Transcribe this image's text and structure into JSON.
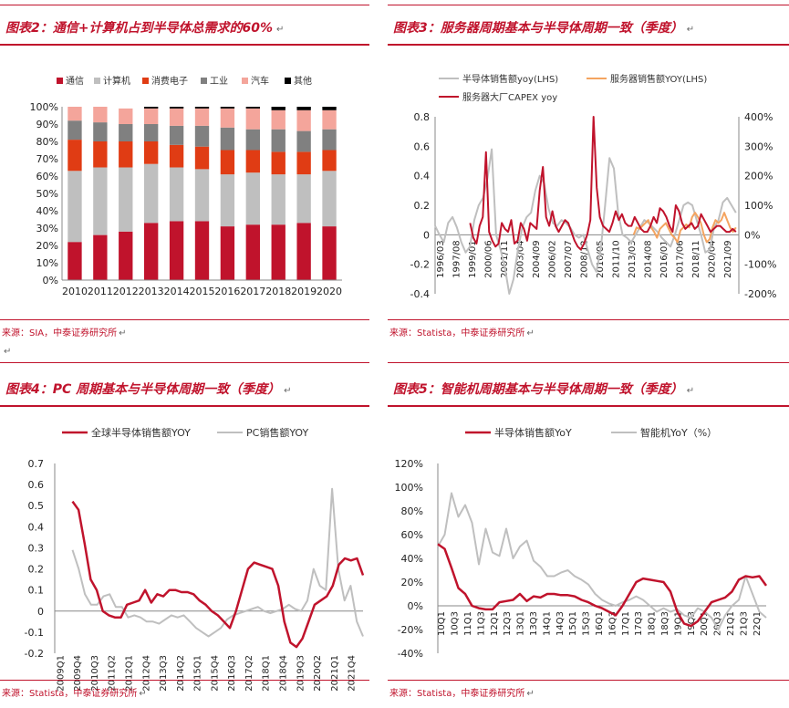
{
  "return_mark": "↵",
  "panels": {
    "p2": {
      "title": "图表2：通信+计算机占到半导体总需求的60%",
      "source_label": "来源：",
      "source_body": "SIA，中泰证券研究所"
    },
    "p3": {
      "title": "图表3：服务器周期基本与半导体周期一致（季度）",
      "source_label": "来源：",
      "source_body": "Statista，中泰证券研究所"
    },
    "p4": {
      "title": "图表4：PC 周期基本与半导体周期一致（季度）",
      "source_label": "来源：",
      "source_body": "Statista，中泰证券研究所"
    },
    "p5": {
      "title": "图表5：智能机周期基本与半导体周期一致（季度）",
      "source_label": "来源：",
      "source_body": "Statista，中泰证券研究所"
    }
  },
  "colors": {
    "accent": "#c0132c",
    "grey": "#bfbfbf",
    "orange": "#f4a460",
    "comm": "#c0132c",
    "computer": "#bfbfbf",
    "consumer": "#e03c14",
    "industrial": "#808080",
    "auto": "#f4a59b",
    "other": "#000000"
  },
  "chart_data": [
    {
      "id": "p2",
      "type": "bar",
      "stacked": true,
      "categories": [
        "2010",
        "2011",
        "2012",
        "2013",
        "2014",
        "2015",
        "2016",
        "2017",
        "2018",
        "2019",
        "2020"
      ],
      "series": [
        {
          "name": "通信",
          "color_key": "comm",
          "values": [
            22,
            26,
            28,
            33,
            34,
            34,
            31,
            32,
            32,
            33,
            31
          ]
        },
        {
          "name": "计算机",
          "color_key": "computer",
          "values": [
            41,
            39,
            37,
            34,
            31,
            30,
            30,
            30,
            29,
            28,
            32
          ]
        },
        {
          "name": "消费电子",
          "color_key": "consumer",
          "values": [
            18,
            15,
            15,
            13,
            13,
            13,
            14,
            13,
            13,
            13,
            12
          ]
        },
        {
          "name": "工业",
          "color_key": "industrial",
          "values": [
            11,
            11,
            10,
            10,
            11,
            12,
            13,
            12,
            13,
            12,
            12
          ]
        },
        {
          "name": "汽车",
          "color_key": "auto",
          "values": [
            8,
            9,
            9,
            9,
            10,
            10,
            11,
            12,
            11,
            12,
            11
          ]
        },
        {
          "name": "其他",
          "color_key": "other",
          "values": [
            0,
            0,
            0,
            1,
            1,
            1,
            1,
            1,
            2,
            2,
            2
          ]
        }
      ],
      "ylim": [
        0,
        100
      ],
      "yticks": [
        "0%",
        "10%",
        "20%",
        "30%",
        "40%",
        "50%",
        "60%",
        "70%",
        "80%",
        "90%",
        "100%"
      ],
      "legend_position": "top"
    },
    {
      "id": "p3",
      "type": "line",
      "x_start": 1996.0,
      "x_end": 2022.0,
      "xticks": [
        "1996/03",
        "1997/08",
        "1999/01",
        "2000/06",
        "2001/11",
        "2003/04",
        "2004/09",
        "2006/02",
        "2007/07",
        "2008/12",
        "2010/05",
        "2011/10",
        "2013/03",
        "2014/08",
        "2016/01",
        "2017/06",
        "2018/11",
        "2020/04",
        "2021/09"
      ],
      "ylim_left": [
        -0.4,
        0.8
      ],
      "yticks_left": [
        "-0.4",
        "-0.2",
        "0",
        "0.2",
        "0.4",
        "0.6",
        "0.8"
      ],
      "ylim_right": [
        -200,
        400
      ],
      "yticks_right": [
        "-200%",
        "-100%",
        "0%",
        "100%",
        "200%",
        "300%",
        "400%"
      ],
      "series": [
        {
          "name": "半导体销售额yoy(LHS)",
          "axis": "left",
          "color_key": "grey",
          "x_start": 1996.0,
          "x_end": 2021.75,
          "values": [
            0.06,
            0.0,
            -0.05,
            0.08,
            0.12,
            0.05,
            -0.05,
            -0.12,
            -0.08,
            0.1,
            0.2,
            0.25,
            0.38,
            0.58,
            0.0,
            -0.1,
            -0.22,
            -0.4,
            -0.3,
            -0.1,
            0.05,
            0.12,
            0.15,
            0.3,
            0.4,
            0.35,
            0.18,
            0.08,
            0.06,
            0.1,
            0.08,
            0.05,
            0.0,
            -0.02,
            0.0,
            -0.1,
            -0.2,
            -0.25,
            -0.1,
            0.2,
            0.52,
            0.45,
            0.15,
            0.0,
            -0.02,
            -0.05,
            0.0,
            0.05,
            0.1,
            0.08,
            0.05,
            0.02,
            -0.02,
            -0.05,
            -0.08,
            0.0,
            0.1,
            0.2,
            0.22,
            0.2,
            0.1,
            0.0,
            -0.12,
            -0.1,
            0.05,
            0.1,
            0.22,
            0.25,
            0.2,
            0.15
          ]
        },
        {
          "name": "服务器销售额YOY(LHS)",
          "axis": "left",
          "color_key": "orange",
          "x_start": 2013.0,
          "x_end": 2021.75,
          "values": [
            0.0,
            0.05,
            0.04,
            0.06,
            0.08,
            0.1,
            0.05,
            0.02,
            -0.02,
            0.04,
            0.06,
            0.08,
            0.04,
            0.0,
            -0.02,
            -0.05,
            0.03,
            0.05,
            0.07,
            0.05,
            0.12,
            0.15,
            0.12,
            0.08,
            0.0,
            -0.05,
            -0.03,
            0.05,
            0.1,
            0.08,
            0.1,
            0.15,
            0.1,
            0.05,
            0.02,
            0.05
          ]
        },
        {
          "name": "服务器大厂CAPEX yoy",
          "axis": "right",
          "color_key": "comm",
          "x_start": 1999.0,
          "x_end": 2021.75,
          "values": [
            40,
            -10,
            -30,
            30,
            60,
            280,
            10,
            -20,
            -40,
            -30,
            40,
            20,
            10,
            50,
            -30,
            -20,
            40,
            20,
            -20,
            40,
            30,
            20,
            150,
            230,
            60,
            30,
            80,
            30,
            10,
            30,
            50,
            40,
            10,
            -20,
            -40,
            -50,
            -30,
            0,
            50,
            400,
            160,
            60,
            30,
            20,
            10,
            40,
            80,
            50,
            70,
            40,
            30,
            30,
            60,
            40,
            20,
            10,
            10,
            30,
            60,
            40,
            90,
            80,
            60,
            30,
            10,
            100,
            80,
            40,
            20,
            30,
            40,
            20,
            30,
            70,
            50,
            30,
            10,
            20,
            30,
            30,
            20,
            10,
            10,
            20,
            10
          ]
        }
      ],
      "legend_position": "top"
    },
    {
      "id": "p4",
      "type": "line",
      "x_start": 2009.0,
      "x_end": 2022.0,
      "xticks": [
        "2009Q1",
        "2009Q4",
        "2010Q3",
        "2011Q2",
        "2012Q1",
        "2012Q4",
        "2013Q3",
        "2014Q2",
        "2015Q1",
        "2015Q4",
        "2016Q3",
        "2017Q2",
        "2018Q1",
        "2018Q4",
        "2019Q3",
        "2020Q2",
        "2021Q1",
        "2021Q4"
      ],
      "ylim": [
        -0.2,
        0.7
      ],
      "yticks": [
        "-0.2",
        "-0.1",
        "0",
        "0.1",
        "0.2",
        "0.3",
        "0.4",
        "0.5",
        "0.6",
        "0.7"
      ],
      "series": [
        {
          "name": "全球半导体销售额YOY",
          "color_key": "comm",
          "x_start": 2009.75,
          "x_end": 2022.0,
          "values": [
            0.52,
            0.48,
            0.32,
            0.15,
            0.1,
            0.0,
            -0.02,
            -0.03,
            -0.03,
            0.03,
            0.04,
            0.05,
            0.1,
            0.04,
            0.08,
            0.07,
            0.1,
            0.1,
            0.09,
            0.09,
            0.08,
            0.05,
            0.03,
            0.0,
            -0.02,
            -0.05,
            -0.08,
            0.0,
            0.1,
            0.2,
            0.23,
            0.22,
            0.21,
            0.2,
            0.12,
            -0.05,
            -0.15,
            -0.17,
            -0.13,
            -0.05,
            0.03,
            0.05,
            0.07,
            0.12,
            0.22,
            0.25,
            0.24,
            0.25,
            0.17
          ]
        },
        {
          "name": "PC销售额YOY",
          "color_key": "grey",
          "x_start": 2009.75,
          "x_end": 2022.0,
          "values": [
            0.29,
            0.2,
            0.08,
            0.03,
            0.03,
            0.07,
            0.08,
            0.02,
            0.02,
            -0.03,
            -0.02,
            -0.03,
            -0.05,
            -0.05,
            -0.06,
            -0.04,
            -0.02,
            -0.03,
            -0.02,
            -0.05,
            -0.08,
            -0.1,
            -0.12,
            -0.1,
            -0.08,
            -0.04,
            -0.02,
            -0.01,
            0.0,
            0.01,
            0.02,
            0.0,
            -0.01,
            0.0,
            0.01,
            0.03,
            0.01,
            0.0,
            0.05,
            0.2,
            0.12,
            0.1,
            0.58,
            0.2,
            0.05,
            0.12,
            -0.05,
            -0.12
          ]
        }
      ],
      "legend_position": "top"
    },
    {
      "id": "p5",
      "type": "line",
      "x_start": 2010.0,
      "x_end": 2022.5,
      "xticks": [
        "10Q1",
        "10Q3",
        "11Q1",
        "11Q3",
        "12Q1",
        "12Q3",
        "13Q1",
        "13Q3",
        "14Q1",
        "14Q3",
        "15Q1",
        "15Q3",
        "16Q1",
        "16Q3",
        "17Q1",
        "17Q3",
        "18Q1",
        "18Q3",
        "19Q1",
        "19Q3",
        "20Q1",
        "20Q3",
        "21Q1",
        "21Q3",
        "22Q1"
      ],
      "ylim": [
        -40,
        120
      ],
      "yticks": [
        "-40%",
        "-20%",
        "0%",
        "20%",
        "40%",
        "60%",
        "80%",
        "100%",
        "120%"
      ],
      "series": [
        {
          "name": "半导体销售额YoY",
          "color_key": "comm",
          "x_start": 2010.0,
          "x_end": 2022.5,
          "values": [
            52,
            48,
            32,
            15,
            10,
            0,
            -2,
            -3,
            -3,
            3,
            4,
            5,
            10,
            4,
            8,
            7,
            10,
            10,
            9,
            9,
            8,
            5,
            3,
            0,
            -2,
            -5,
            -8,
            0,
            10,
            20,
            23,
            22,
            21,
            20,
            12,
            -5,
            -15,
            -17,
            -13,
            -5,
            3,
            5,
            7,
            12,
            22,
            25,
            24,
            25,
            17
          ]
        },
        {
          "name": "智能机YoY（%）",
          "color_key": "grey",
          "x_start": 2010.0,
          "x_end": 2022.5,
          "values": [
            50,
            60,
            95,
            75,
            85,
            70,
            35,
            65,
            45,
            42,
            65,
            40,
            50,
            55,
            38,
            33,
            25,
            25,
            28,
            30,
            25,
            22,
            18,
            10,
            5,
            2,
            0,
            3,
            5,
            8,
            5,
            0,
            -5,
            -2,
            -5,
            -3,
            -8,
            -10,
            -2,
            -5,
            -10,
            -20,
            -8,
            0,
            5,
            25,
            10,
            -5,
            -10
          ]
        }
      ],
      "legend_position": "top"
    }
  ],
  "legends": {
    "p2": [
      "通信",
      "计算机",
      "消费电子",
      "工业",
      "汽车",
      "其他"
    ],
    "p3": [
      "半导体销售额yoy(LHS)",
      "服务器销售额YOY(LHS)",
      "服务器大厂CAPEX yoy"
    ],
    "p4": [
      "全球半导体销售额YOY",
      "PC销售额YOY"
    ],
    "p5": [
      "半导体销售额YoY",
      "智能机YoY（%）"
    ]
  }
}
